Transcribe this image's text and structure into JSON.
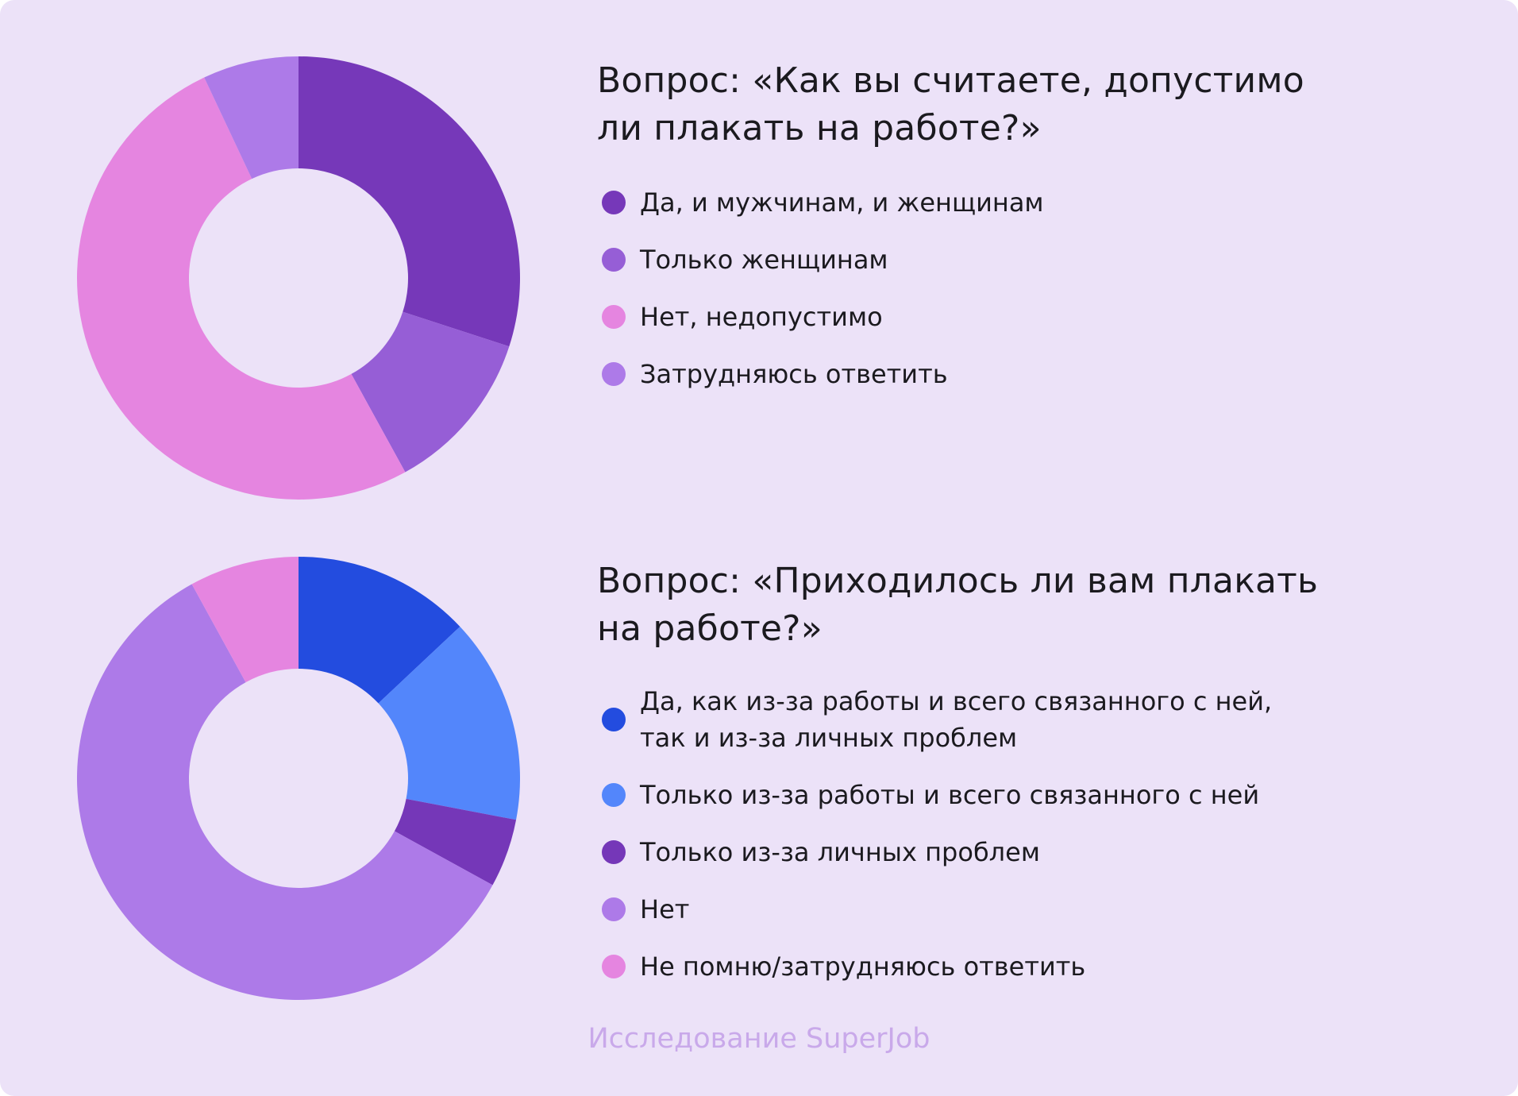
{
  "chart_data": [
    {
      "type": "pie",
      "variant": "donut",
      "title": "Вопрос: «Как вы считаете, допустимо ли плакать на работе?»",
      "title_lines": [
        "Вопрос: «Как вы считаете, допустимо",
        "ли плакать на работе?»"
      ],
      "categories": [
        "Да, и мужчинам, и женщинам",
        "Только женщинам",
        "Нет, недопустимо",
        "Затрудняюсь ответить"
      ],
      "values": [
        30,
        12,
        51,
        7
      ],
      "colors": [
        "#7638b9",
        "#965ed6",
        "#e585e0",
        "#ad7ae8"
      ],
      "legend_position": "right"
    },
    {
      "type": "pie",
      "variant": "donut",
      "title": "Вопрос: «Приходилось ли вам плакать на работе?»",
      "title_lines": [
        "Вопрос: «Приходилось ли вам плакать",
        "на работе?»"
      ],
      "categories": [
        "Да, как из-за работы и всего связанного с ней, так и из-за личных проблем",
        "Только из-за работы и всего связанного с ней",
        "Только из-за личных проблем",
        "Нет",
        "Не помню/затрудняюсь ответить"
      ],
      "values": [
        13,
        15,
        5,
        59,
        8
      ],
      "colors": [
        "#234cdf",
        "#5386fb",
        "#7537b8",
        "#ad7ae8",
        "#e585e0"
      ],
      "legend_position": "right"
    }
  ],
  "chart1": {
    "title_line1": "Вопрос: «Как вы считаете, допустимо",
    "title_line2": "ли плакать на работе?»",
    "legend": [
      {
        "label": "Да, и мужчинам, и женщинам",
        "color": "#7638b9"
      },
      {
        "label": "Только женщинам",
        "color": "#965ed6"
      },
      {
        "label": "Нет, недопустимо",
        "color": "#e585e0"
      },
      {
        "label": "Затрудняюсь ответить",
        "color": "#ad7ae8"
      }
    ]
  },
  "chart2": {
    "title_line1": "Вопрос: «Приходилось ли вам плакать",
    "title_line2": "на работе?»",
    "legend": [
      {
        "label_line1": "Да, как из-за работы и всего связанного с ней,",
        "label_line2": "так и из-за личных проблем",
        "color": "#234cdf"
      },
      {
        "label": "Только из-за работы и всего связанного с ней",
        "color": "#5386fb"
      },
      {
        "label": "Только из-за личных проблем",
        "color": "#7537b8"
      },
      {
        "label": "Нет",
        "color": "#ad7ae8"
      },
      {
        "label": "Не помню/затрудняюсь ответить",
        "color": "#e585e0"
      }
    ]
  },
  "footer": {
    "source": "Исследование SuperJob"
  },
  "colors": {
    "background": "#ece2f8",
    "text": "#1b1a1f",
    "footer": "#c9a9ea"
  }
}
